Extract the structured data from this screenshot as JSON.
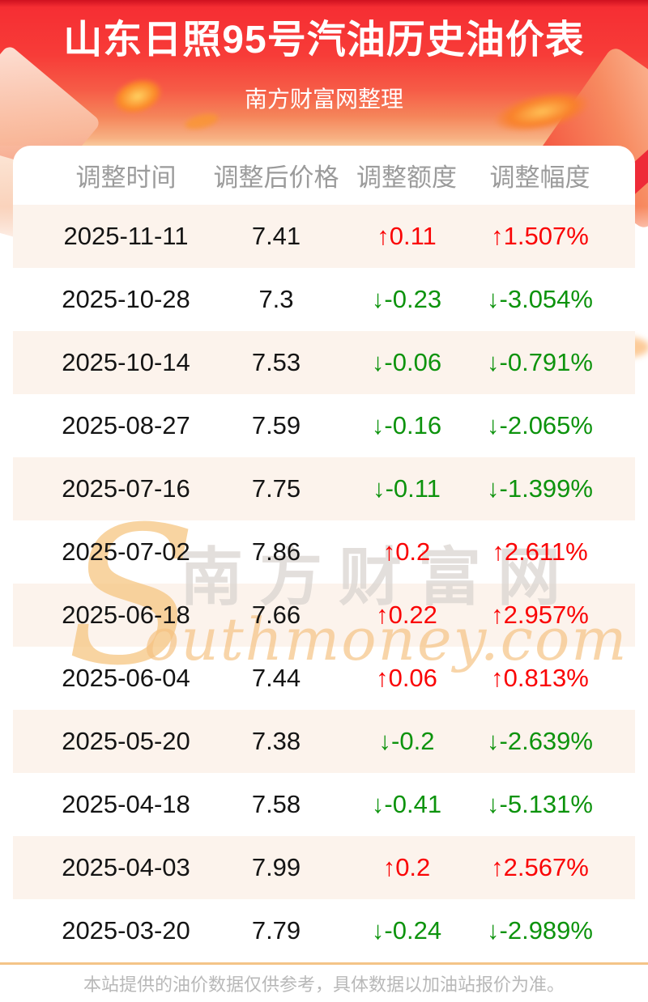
{
  "banner": {
    "title": "山东日照95号汽油历史油价表",
    "subtitle": "南方财富网整理"
  },
  "chart_data": {
    "type": "table",
    "title": "山东日照95号汽油历史油价表",
    "columns": [
      "调整时间",
      "调整后价格",
      "调整额度",
      "调整幅度"
    ],
    "rows": [
      {
        "date": "2025-11-11",
        "price": "7.41",
        "change": "↑0.11",
        "percent": "↑1.507%",
        "direction": "up"
      },
      {
        "date": "2025-10-28",
        "price": "7.3",
        "change": "↓-0.23",
        "percent": "↓-3.054%",
        "direction": "down"
      },
      {
        "date": "2025-10-14",
        "price": "7.53",
        "change": "↓-0.06",
        "percent": "↓-0.791%",
        "direction": "down"
      },
      {
        "date": "2025-08-27",
        "price": "7.59",
        "change": "↓-0.16",
        "percent": "↓-2.065%",
        "direction": "down"
      },
      {
        "date": "2025-07-16",
        "price": "7.75",
        "change": "↓-0.11",
        "percent": "↓-1.399%",
        "direction": "down"
      },
      {
        "date": "2025-07-02",
        "price": "7.86",
        "change": "↑0.2",
        "percent": "↑2.611%",
        "direction": "up"
      },
      {
        "date": "2025-06-18",
        "price": "7.66",
        "change": "↑0.22",
        "percent": "↑2.957%",
        "direction": "up"
      },
      {
        "date": "2025-06-04",
        "price": "7.44",
        "change": "↑0.06",
        "percent": "↑0.813%",
        "direction": "up"
      },
      {
        "date": "2025-05-20",
        "price": "7.38",
        "change": "↓-0.2",
        "percent": "↓-2.639%",
        "direction": "down"
      },
      {
        "date": "2025-04-18",
        "price": "7.58",
        "change": "↓-0.41",
        "percent": "↓-5.131%",
        "direction": "down"
      },
      {
        "date": "2025-04-03",
        "price": "7.99",
        "change": "↑0.2",
        "percent": "↑2.567%",
        "direction": "up"
      },
      {
        "date": "2025-03-20",
        "price": "7.79",
        "change": "↓-0.24",
        "percent": "↓-2.989%",
        "direction": "down"
      }
    ]
  },
  "watermark": {
    "initial": "S",
    "cn": "南方财富网",
    "en": "outhmoney.com"
  },
  "footer": {
    "disclaimer": "本站提供的油价数据仅供参考，具体数据以加油站报价为准。"
  },
  "colors": {
    "up": "#fa0405",
    "down": "#0d930d",
    "banner_red": "#f73c38",
    "stripe": "#fcf3ec",
    "divider": "#f4c488"
  }
}
